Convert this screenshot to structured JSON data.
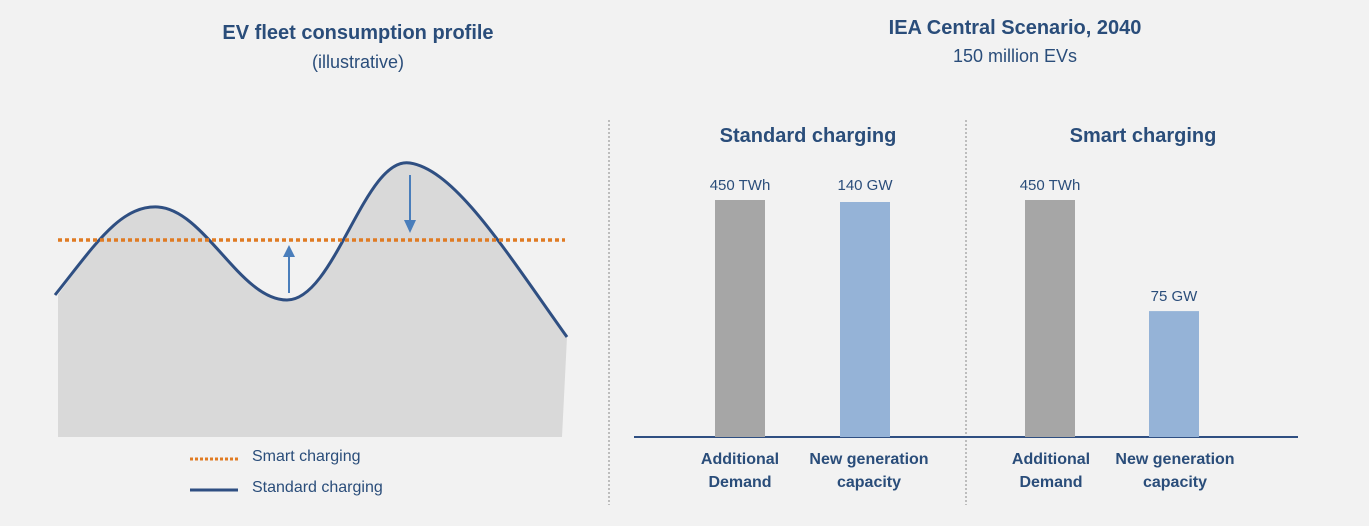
{
  "left_panel": {
    "title": "EV fleet consumption profile",
    "subtitle": "(illustrative)",
    "legend": [
      {
        "label": "Smart charging",
        "style": "dotted",
        "color": "#e07b23"
      },
      {
        "label": "Standard charging",
        "style": "solid",
        "color": "#2f4f82"
      }
    ]
  },
  "right_panel": {
    "title": "IEA Central Scenario, 2040",
    "subtitle": "150 million EVs"
  },
  "chart_data": [
    {
      "type": "bar",
      "title": "Standard charging",
      "categories": [
        "Additional Demand",
        "New generation capacity"
      ],
      "values": [
        450,
        140
      ],
      "units": [
        "TWh",
        "GW"
      ],
      "value_labels": [
        "450 TWh",
        "140 GW"
      ],
      "colors": [
        "#a6a6a6",
        "#95b3d7"
      ]
    },
    {
      "type": "bar",
      "title": "Smart charging",
      "categories": [
        "Additional Demand",
        "New generation capacity"
      ],
      "values": [
        450,
        75
      ],
      "units": [
        "TWh",
        "GW"
      ],
      "value_labels": [
        "450 TWh",
        "75 GW"
      ],
      "colors": [
        "#a6a6a6",
        "#95b3d7"
      ]
    }
  ],
  "colors": {
    "title": "#2a4d7a",
    "area_fill": "#d9d9d9",
    "standard_line": "#2f4f82",
    "smart_line": "#e07b23",
    "arrow": "#4a7ebb",
    "axis": "#2f4f82"
  }
}
